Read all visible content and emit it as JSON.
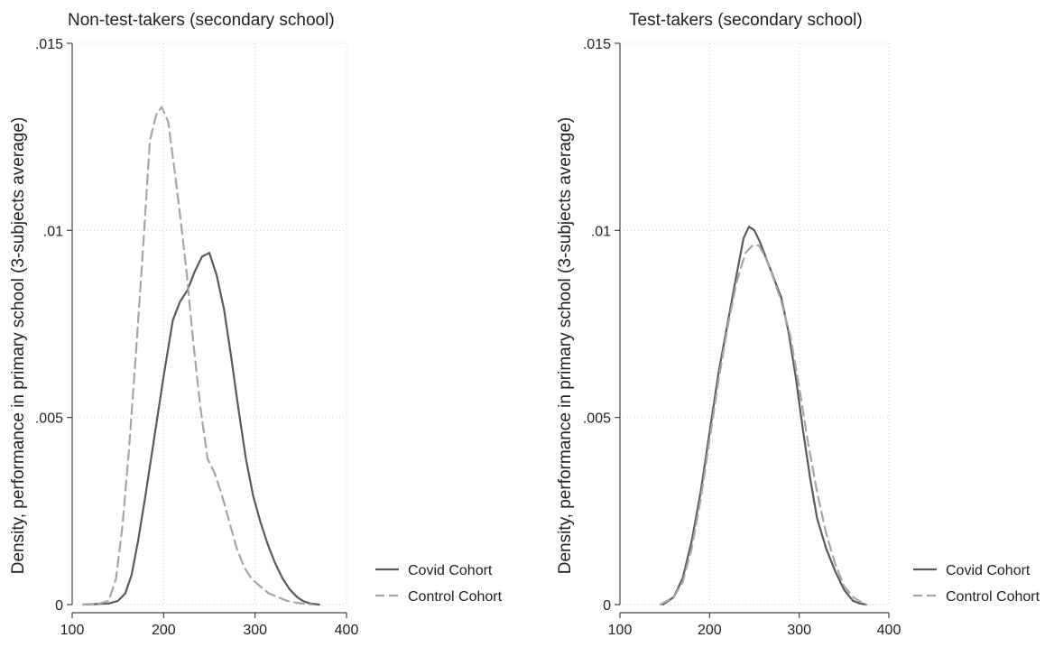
{
  "chart_data": [
    {
      "type": "line",
      "title": "Non-test-takers (secondary school)",
      "xlabel": "",
      "ylabel": "Density, performance in primary school (3-subjects average)",
      "xlim": [
        100,
        400
      ],
      "ylim": [
        0,
        0.015
      ],
      "xticks": [
        "100",
        "200",
        "300",
        "400"
      ],
      "yticks": [
        ".015",
        ".01",
        ".005",
        "0"
      ],
      "grid": true,
      "legend": "right-bottom",
      "series": [
        {
          "name": "Covid Cohort",
          "style": "solid",
          "color": "#5a5a5a",
          "x": [
            112,
            140,
            150,
            158,
            165,
            172,
            180,
            190,
            200,
            210,
            218,
            226,
            234,
            242,
            250,
            258,
            266,
            274,
            282,
            290,
            298,
            306,
            314,
            322,
            330,
            338,
            346,
            352,
            360,
            370
          ],
          "y": [
            0,
            3e-05,
            0.0001,
            0.0003,
            0.0008,
            0.0017,
            0.0029,
            0.0045,
            0.0061,
            0.0076,
            0.0081,
            0.0084,
            0.0089,
            0.0093,
            0.0094,
            0.0088,
            0.0079,
            0.0066,
            0.0052,
            0.0039,
            0.0029,
            0.0022,
            0.0016,
            0.0011,
            0.0007,
            0.0004,
            0.0002,
            0.0001,
            3e-05,
            0
          ]
        },
        {
          "name": "Control Cohort",
          "style": "dashed",
          "color": "#a6a6a6",
          "x": [
            112,
            130,
            140,
            148,
            155,
            162,
            170,
            178,
            185,
            192,
            198,
            205,
            212,
            218,
            225,
            232,
            240,
            248,
            256,
            264,
            272,
            280,
            288,
            296,
            305,
            315,
            325,
            335,
            345,
            355,
            362
          ],
          "y": [
            0,
            3e-05,
            0.0001,
            0.0007,
            0.0021,
            0.0041,
            0.0068,
            0.0097,
            0.0124,
            0.0131,
            0.0133,
            0.0129,
            0.0116,
            0.0104,
            0.0089,
            0.0071,
            0.0053,
            0.0039,
            0.0035,
            0.0029,
            0.0022,
            0.0015,
            0.001,
            0.0007,
            0.0005,
            0.0003,
            0.0002,
            0.0001,
            5e-05,
            2e-05,
            0
          ]
        }
      ]
    },
    {
      "type": "line",
      "title": "Test-takers (secondary school)",
      "xlabel": "",
      "ylabel": "Density, performance in primary school (3-subjects average)",
      "xlim": [
        100,
        400
      ],
      "ylim": [
        0,
        0.015
      ],
      "xticks": [
        "100",
        "200",
        "300",
        "400"
      ],
      "yticks": [
        ".015",
        ".01",
        ".005",
        "0"
      ],
      "grid": true,
      "legend": "right-bottom",
      "series": [
        {
          "name": "Covid Cohort",
          "style": "solid",
          "color": "#5a5a5a",
          "x": [
            148,
            160,
            170,
            180,
            190,
            200,
            210,
            220,
            230,
            238,
            244,
            250,
            256,
            264,
            272,
            280,
            288,
            296,
            304,
            312,
            320,
            330,
            340,
            350,
            360,
            368,
            375
          ],
          "y": [
            0,
            0.0002,
            0.0007,
            0.0017,
            0.003,
            0.0046,
            0.0062,
            0.0075,
            0.0088,
            0.0098,
            0.0101,
            0.01,
            0.0097,
            0.0092,
            0.0087,
            0.0082,
            0.0073,
            0.0061,
            0.0047,
            0.0034,
            0.0023,
            0.0015,
            0.0009,
            0.0004,
            0.0001,
            3e-05,
            0
          ]
        },
        {
          "name": "Control Cohort",
          "style": "dashed",
          "color": "#a6a6a6",
          "x": [
            145,
            160,
            170,
            180,
            190,
            200,
            210,
            220,
            230,
            240,
            248,
            255,
            262,
            270,
            280,
            290,
            300,
            310,
            320,
            330,
            340,
            350,
            360,
            370,
            375
          ],
          "y": [
            0,
            0.0002,
            0.0006,
            0.0015,
            0.0028,
            0.0044,
            0.006,
            0.0074,
            0.0086,
            0.0094,
            0.0096,
            0.0096,
            0.0093,
            0.0088,
            0.0081,
            0.0072,
            0.0058,
            0.0043,
            0.003,
            0.0019,
            0.0011,
            0.0005,
            0.0002,
            5e-05,
            0
          ]
        }
      ]
    }
  ]
}
